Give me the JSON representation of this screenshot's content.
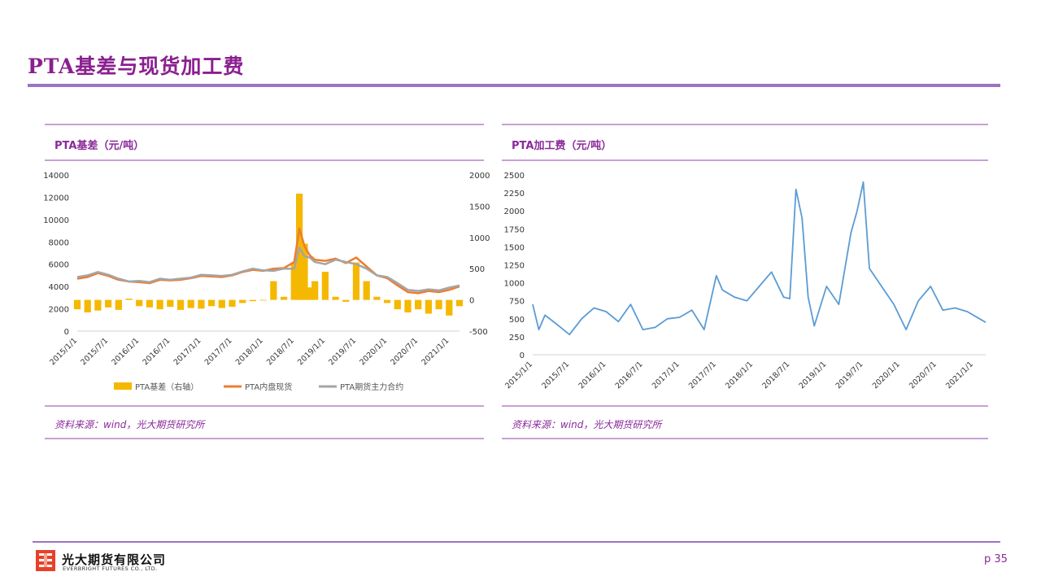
{
  "page": {
    "title": "PTA基差与现货加工费",
    "page_number": "p 35"
  },
  "footer": {
    "company_cn": "光大期货有限公司",
    "company_en": "EVERBRIGHT FUTURES CO., LTD."
  },
  "colors": {
    "title": "#8a1f8f",
    "rule": "#9b74c4",
    "basis": "#f5b800",
    "spot": "#ed7d31",
    "futures": "#a5a5a5",
    "fee": "#5b9bd5"
  },
  "chart_data": [
    {
      "type": "line",
      "panel_title": "PTA基差（元/吨）",
      "source": "资料来源：wind，光大期货研究所",
      "x_ticks": [
        "2015/1/1",
        "2015/7/1",
        "2016/1/1",
        "2016/7/1",
        "2017/1/1",
        "2017/7/1",
        "2018/1/1",
        "2018/7/1",
        "2019/1/1",
        "2019/7/1",
        "2020/1/1",
        "2020/7/1",
        "2021/1/1"
      ],
      "left_axis": {
        "ticks": [
          0,
          2000,
          4000,
          6000,
          8000,
          10000,
          12000,
          14000
        ],
        "ylim": [
          0,
          14000
        ]
      },
      "right_axis": {
        "ticks": [
          -500,
          0,
          500,
          1000,
          1500,
          2000
        ],
        "ylim": [
          -500,
          2000
        ]
      },
      "x": [
        "2015/1/1",
        "2015/3/1",
        "2015/5/1",
        "2015/7/1",
        "2015/9/1",
        "2015/11/1",
        "2016/1/1",
        "2016/3/1",
        "2016/5/1",
        "2016/7/1",
        "2016/9/1",
        "2016/11/1",
        "2017/1/1",
        "2017/3/1",
        "2017/5/1",
        "2017/7/1",
        "2017/9/1",
        "2017/11/1",
        "2018/1/1",
        "2018/3/1",
        "2018/5/1",
        "2018/7/1",
        "2018/8/1",
        "2018/9/1",
        "2018/10/1",
        "2018/11/1",
        "2019/1/1",
        "2019/3/1",
        "2019/5/1",
        "2019/7/1",
        "2019/9/1",
        "2019/11/1",
        "2020/1/1",
        "2020/3/1",
        "2020/5/1",
        "2020/7/1",
        "2020/9/1",
        "2020/11/1",
        "2021/1/1",
        "2021/3/1"
      ],
      "series": [
        {
          "name": "PTA基差（右轴）",
          "kind": "bar",
          "axis": "right",
          "values": [
            -150,
            -200,
            -170,
            -120,
            -160,
            20,
            -100,
            -120,
            -150,
            -110,
            -160,
            -130,
            -140,
            -100,
            -130,
            -110,
            -50,
            -20,
            -10,
            300,
            50,
            600,
            1700,
            900,
            200,
            300,
            450,
            50,
            -30,
            600,
            300,
            50,
            -50,
            -150,
            -200,
            -150,
            -220,
            -150,
            -250,
            -100
          ]
        },
        {
          "name": "PTA内盘现货",
          "kind": "line",
          "axis": "left",
          "values": [
            4700,
            4850,
            5200,
            4950,
            4600,
            4450,
            4400,
            4300,
            4600,
            4550,
            4600,
            4750,
            4950,
            4900,
            4850,
            5000,
            5300,
            5500,
            5400,
            5600,
            5650,
            6200,
            9200,
            7600,
            6800,
            6400,
            6300,
            6500,
            6100,
            6600,
            5800,
            5000,
            4750,
            4100,
            3500,
            3400,
            3600,
            3500,
            3700,
            4000
          ]
        },
        {
          "name": "PTA期货主力合约",
          "kind": "line",
          "axis": "left",
          "values": [
            4850,
            5000,
            5300,
            5050,
            4700,
            4450,
            4500,
            4400,
            4700,
            4600,
            4700,
            4800,
            5050,
            5000,
            4950,
            5050,
            5350,
            5600,
            5450,
            5400,
            5600,
            5600,
            7500,
            6700,
            6600,
            6200,
            6000,
            6400,
            6200,
            6000,
            5600,
            5000,
            4850,
            4300,
            3700,
            3600,
            3750,
            3650,
            3900,
            4100
          ]
        }
      ]
    },
    {
      "type": "line",
      "panel_title": "PTA加工费（元/吨）",
      "source": "资料来源：wind，光大期货研究所",
      "x_ticks": [
        "2015/1/1",
        "2015/7/1",
        "2016/1/1",
        "2016/7/1",
        "2017/1/1",
        "2017/7/1",
        "2018/1/1",
        "2018/7/1",
        "2019/1/1",
        "2019/7/1",
        "2020/1/1",
        "2020/7/1",
        "2021/1/1"
      ],
      "left_axis": {
        "ticks": [
          0,
          250,
          500,
          750,
          1000,
          1250,
          1500,
          1750,
          2000,
          2250,
          2500
        ],
        "ylim": [
          0,
          2500
        ]
      },
      "x": [
        "2015/1/1",
        "2015/2/1",
        "2015/3/1",
        "2015/5/1",
        "2015/7/1",
        "2015/9/1",
        "2015/11/1",
        "2016/1/1",
        "2016/3/1",
        "2016/5/1",
        "2016/7/1",
        "2016/9/1",
        "2016/11/1",
        "2017/1/1",
        "2017/3/1",
        "2017/5/1",
        "2017/7/1",
        "2017/8/1",
        "2017/10/1",
        "2017/12/1",
        "2018/2/1",
        "2018/4/1",
        "2018/6/1",
        "2018/7/1",
        "2018/8/1",
        "2018/9/1",
        "2018/10/1",
        "2018/11/1",
        "2019/1/1",
        "2019/3/1",
        "2019/5/1",
        "2019/6/1",
        "2019/7/1",
        "2019/8/1",
        "2019/10/1",
        "2019/12/1",
        "2020/2/1",
        "2020/4/1",
        "2020/6/1",
        "2020/8/1",
        "2020/10/1",
        "2020/12/1",
        "2021/2/1",
        "2021/3/1"
      ],
      "series": [
        {
          "name": "PTA加工费",
          "kind": "line",
          "axis": "left",
          "values": [
            700,
            350,
            550,
            420,
            280,
            500,
            650,
            600,
            460,
            700,
            350,
            380,
            500,
            520,
            620,
            350,
            1100,
            900,
            800,
            750,
            950,
            1150,
            800,
            780,
            2300,
            1900,
            800,
            400,
            950,
            700,
            1700,
            2000,
            2400,
            1200,
            950,
            700,
            350,
            750,
            950,
            620,
            650,
            600,
            500,
            450
          ]
        }
      ]
    }
  ]
}
